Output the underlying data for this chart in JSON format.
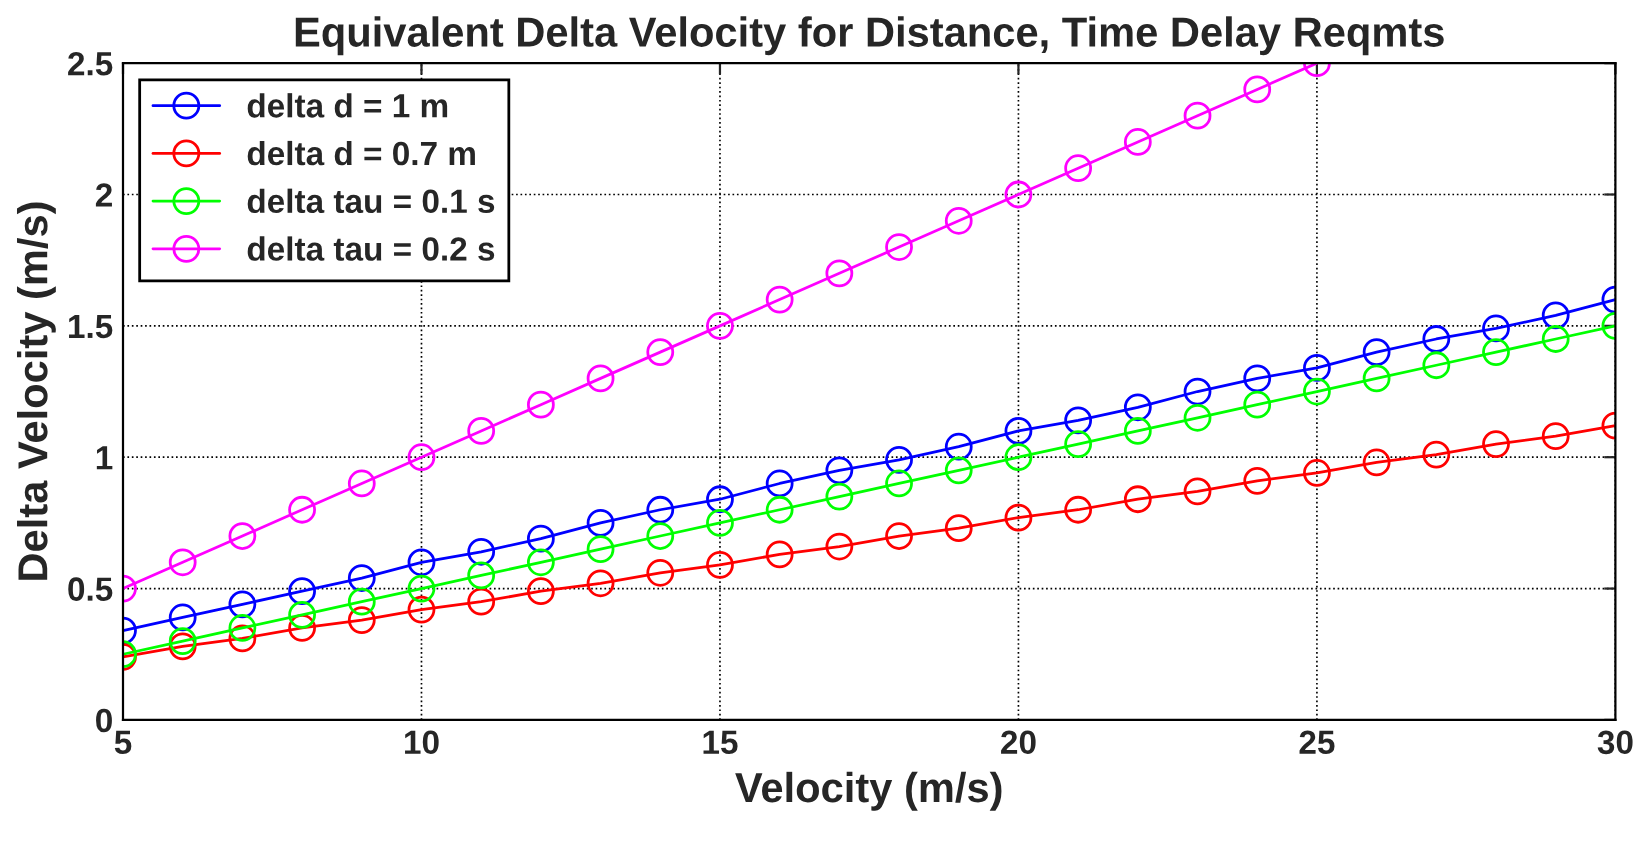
{
  "chart_data": {
    "type": "line",
    "title": "Equivalent Delta Velocity for Distance, Time Delay Reqmts",
    "xlabel": "Velocity (m/s)",
    "ylabel": "Delta Velocity (m/s)",
    "x": [
      5,
      6,
      7,
      8,
      9,
      10,
      11,
      12,
      13,
      14,
      15,
      16,
      17,
      18,
      19,
      20,
      21,
      22,
      23,
      24,
      25,
      26,
      27,
      28,
      29,
      30
    ],
    "series": [
      {
        "name": "delta d = 1 m",
        "color": "#0000ff",
        "values": [
          0.34,
          0.39,
          0.44,
          0.49,
          0.54,
          0.6,
          0.64,
          0.69,
          0.75,
          0.8,
          0.84,
          0.9,
          0.95,
          0.99,
          1.04,
          1.1,
          1.14,
          1.19,
          1.25,
          1.3,
          1.34,
          1.4,
          1.45,
          1.49,
          1.54,
          1.6
        ]
      },
      {
        "name": "delta d = 0.7 m",
        "color": "#ff0000",
        "values": [
          0.24,
          0.28,
          0.31,
          0.35,
          0.38,
          0.42,
          0.45,
          0.49,
          0.52,
          0.56,
          0.59,
          0.63,
          0.66,
          0.7,
          0.73,
          0.77,
          0.8,
          0.84,
          0.87,
          0.91,
          0.94,
          0.98,
          1.01,
          1.05,
          1.08,
          1.12
        ]
      },
      {
        "name": "delta tau = 0.1 s",
        "color": "#00ff00",
        "values": [
          0.25,
          0.3,
          0.35,
          0.4,
          0.45,
          0.5,
          0.55,
          0.6,
          0.65,
          0.7,
          0.75,
          0.8,
          0.85,
          0.9,
          0.95,
          1.0,
          1.05,
          1.1,
          1.15,
          1.2,
          1.25,
          1.3,
          1.35,
          1.4,
          1.45,
          1.5
        ]
      },
      {
        "name": "delta tau = 0.2 s",
        "color": "#ff00ff",
        "values": [
          0.5,
          0.6,
          0.7,
          0.8,
          0.9,
          1.0,
          1.1,
          1.2,
          1.3,
          1.4,
          1.5,
          1.6,
          1.7,
          1.8,
          1.9,
          2.0,
          2.1,
          2.2,
          2.3,
          2.4,
          2.5,
          null,
          null,
          null,
          null,
          null
        ]
      }
    ],
    "xlim": [
      5,
      30
    ],
    "xticks": [
      5,
      10,
      15,
      20,
      25,
      30
    ],
    "ylim": [
      0,
      2.5
    ],
    "yticks": [
      0,
      0.5,
      1,
      1.5,
      2,
      2.5
    ],
    "grid": true,
    "legend": "top left",
    "marker": "circle",
    "line_style": "solid"
  }
}
